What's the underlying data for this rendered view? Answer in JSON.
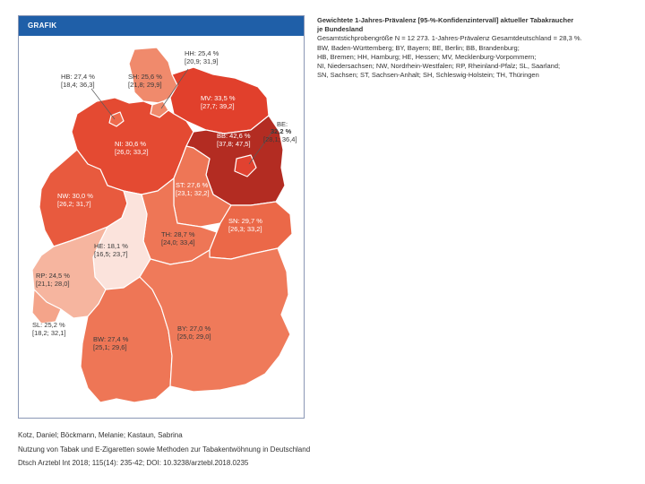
{
  "figure": {
    "header": "GRAFIK"
  },
  "legend": {
    "title_line1": "Gewichtete 1-Jahres-Prävalenz [95-%-Konfidenzintervall] aktueller Tabakraucher",
    "title_line2": "je Bundesland",
    "lines": [
      "Gesamtstichprobengröße N = 12 273. 1-Jahres-Prävalenz Gesamtdeutschland = 28,3 %.",
      "BW, Baden-Württemberg; BY, Bayern; BE, Berlin; BB, Brandenburg;",
      "HB, Bremen; HH, Hamburg; HE, Hessen; MV, Mecklenburg-Vorpommern;",
      "NI, Niedersachsen; NW, Nordrhein-Westfalen; RP, Rheinland-Pfalz; SL, Saarland;",
      "SN, Sachsen; ST, Sachsen-Anhalt; SH, Schleswig-Holstein; TH, Thüringen"
    ]
  },
  "states": [
    {
      "code": "SH",
      "label": "SH: 25,6 %",
      "ci": "[21,8; 29,9]",
      "prevalence": 25.6,
      "color": "#f08a6c"
    },
    {
      "code": "HH",
      "label": "HH: 25,4 %",
      "ci": "[20,9; 31,9]",
      "prevalence": 25.4,
      "color": "#f08a6c"
    },
    {
      "code": "HB",
      "label": "HB: 27,4 %",
      "ci": "[18,4; 36,3]",
      "prevalence": 27.4,
      "color": "#ee6a4c"
    },
    {
      "code": "MV",
      "label": "MV: 33,5 %",
      "ci": "[27,7; 39,2]",
      "prevalence": 33.5,
      "color": "#e1402c"
    },
    {
      "code": "NI",
      "label": "NI: 30,6 %",
      "ci": "[26,0; 33,2]",
      "prevalence": 30.6,
      "color": "#e44a32"
    },
    {
      "code": "BB",
      "label": "BB: 42,6 %",
      "ci": "[37,8; 47,5]",
      "prevalence": 42.6,
      "color": "#b32c22"
    },
    {
      "code": "BE",
      "label": "BE:",
      "value_label": "32,2 %",
      "ci": "[28,1; 36,4]",
      "prevalence": 32.2,
      "color": "#e14230"
    },
    {
      "code": "NW",
      "label": "NW: 30,0 %",
      "ci": "[26,2; 31,7]",
      "prevalence": 30.0,
      "color": "#e85a3e"
    },
    {
      "code": "ST",
      "label": "ST: 27,6 %",
      "ci": "[23,1; 32,2]",
      "prevalence": 27.6,
      "color": "#ee7656"
    },
    {
      "code": "SN",
      "label": "SN: 29,7 %",
      "ci": "[26,3; 33,2]",
      "prevalence": 29.7,
      "color": "#eb6848"
    },
    {
      "code": "HE",
      "label": "HE: 18,1 %",
      "ci": "[16,5; 23,7]",
      "prevalence": 18.1,
      "color": "#fbe3dc"
    },
    {
      "code": "TH",
      "label": "TH: 28,7 %",
      "ci": "[24,0; 33,4]",
      "prevalence": 28.7,
      "color": "#ee7656"
    },
    {
      "code": "RP",
      "label": "RP: 24,5 %",
      "ci": "[21,1; 28,0]",
      "prevalence": 24.5,
      "color": "#f6b59f"
    },
    {
      "code": "SL",
      "label": "SL: 25,2 %",
      "ci": "[18,2; 32,1]",
      "prevalence": 25.2,
      "color": "#f4a48a"
    },
    {
      "code": "BW",
      "label": "BW: 27,4 %",
      "ci": "[25,1; 29,6]",
      "prevalence": 27.4,
      "color": "#ee7656"
    },
    {
      "code": "BY",
      "label": "BY: 27,0 %",
      "ci": "[25,0; 29,0]",
      "prevalence": 27.0,
      "color": "#ef7a5a"
    }
  ],
  "citation": {
    "authors": "Kotz, Daniel; Böckmann, Melanie; Kastaun, Sabrina",
    "title": "Nutzung von Tabak und E-Zigaretten sowie Methoden zur Tabakentwöhnung in Deutschland",
    "reference": "Dtsch Arztebl Int 2018; 115(14): 235-42; DOI: 10.3238/arztebl.2018.0235"
  }
}
